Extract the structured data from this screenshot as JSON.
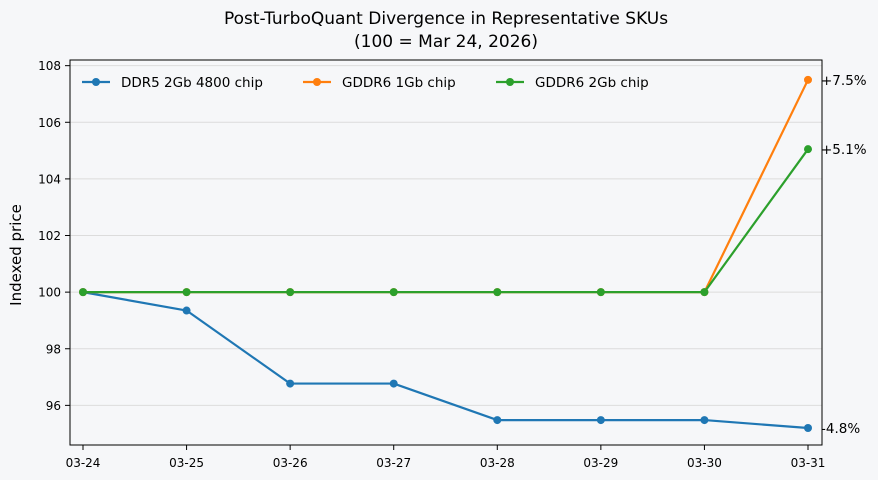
{
  "chart_data": {
    "type": "line",
    "title": "Post-TurboQuant Divergence in Representative SKUs",
    "subtitle": "(100 = Mar 24, 2026)",
    "xlabel": "",
    "ylabel": "Indexed price",
    "categories": [
      "03-24",
      "03-25",
      "03-26",
      "03-27",
      "03-28",
      "03-29",
      "03-30",
      "03-31"
    ],
    "ylim": [
      94.6,
      108.2
    ],
    "yticks": [
      96,
      98,
      100,
      102,
      104,
      106,
      108
    ],
    "grid": "horizontal",
    "legend_position": "top",
    "series": [
      {
        "name": "DDR5 2Gb 4800 chip",
        "color": "#1f77b4",
        "values": [
          100,
          99.35,
          96.77,
          96.77,
          95.48,
          95.48,
          95.48,
          95.2
        ],
        "end_label": "-4.8%"
      },
      {
        "name": "GDDR6 1Gb chip",
        "color": "#ff7f0e",
        "values": [
          100,
          100,
          100,
          100,
          100,
          100,
          100,
          107.5
        ],
        "end_label": "+7.5%"
      },
      {
        "name": "GDDR6 2Gb chip",
        "color": "#2ca02c",
        "values": [
          100,
          100,
          100,
          100,
          100,
          100,
          100,
          105.05
        ],
        "end_label": "+5.1%"
      }
    ]
  }
}
